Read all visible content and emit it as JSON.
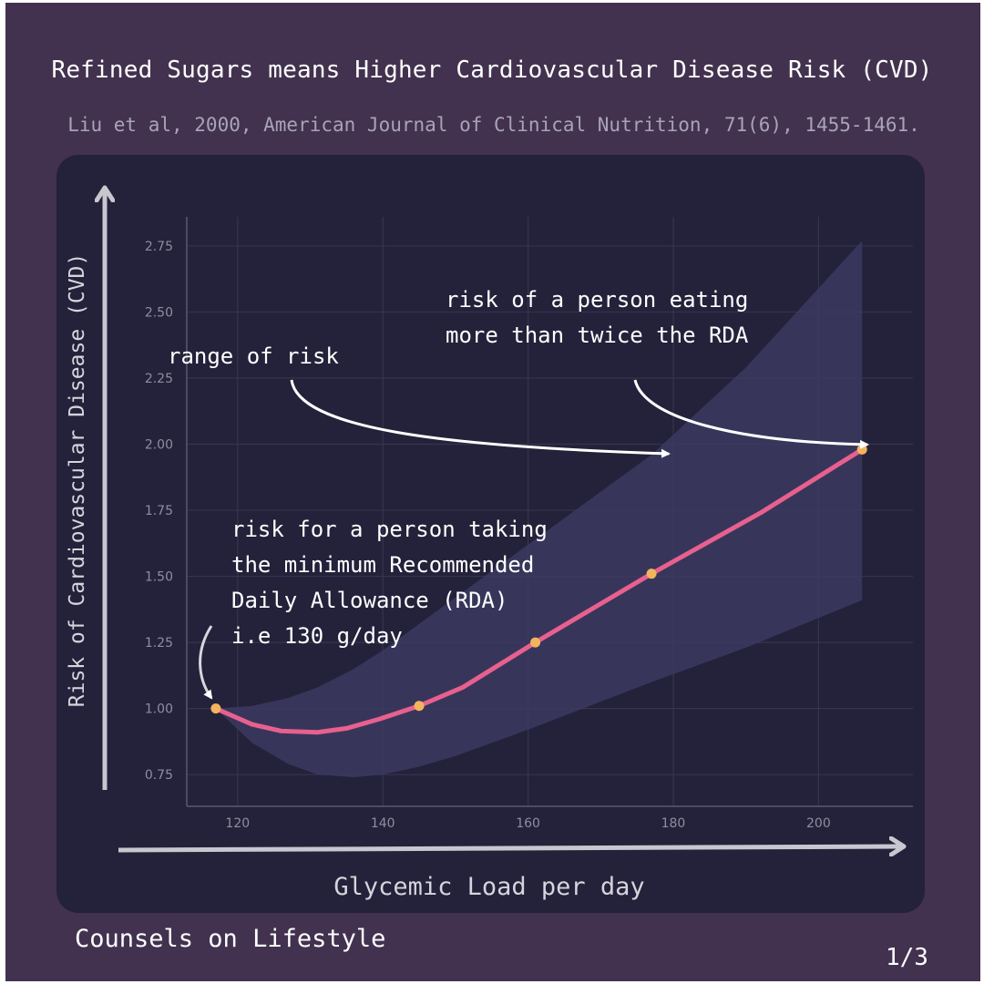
{
  "header": {
    "title": "Refined Sugars means Higher Cardiovascular Disease Risk (CVD)",
    "subtitle": "Liu et al, 2000, American Journal of Clinical Nutrition, 71(6), 1455-1461."
  },
  "footer": {
    "brand": "Counsels on Lifestyle",
    "page_indicator": "1/3"
  },
  "colors": {
    "background": "#42324f",
    "panel": "#24213a",
    "line": "#e8608e",
    "marker": "#f3b45e",
    "band": "#3b3960",
    "text": "#ffffff",
    "tick": "#8f8ca3",
    "grid": "#36344e",
    "axis_arrow": "#c8c6cf"
  },
  "chart_data": {
    "type": "line",
    "xlabel": "Glycemic Load per day",
    "ylabel": "Risk of Cardiovascular Disease (CVD)",
    "xlim": [
      113,
      213
    ],
    "ylim": [
      0.63,
      2.86
    ],
    "x_ticks": [
      120,
      140,
      160,
      180,
      200
    ],
    "x_tick_labels": [
      "120",
      "140",
      "160",
      "180",
      "200"
    ],
    "y_ticks": [
      0.75,
      1.0,
      1.25,
      1.5,
      1.75,
      2.0,
      2.25,
      2.5,
      2.75
    ],
    "y_tick_labels": [
      "0.75",
      "1.00",
      "1.25",
      "1.50",
      "1.75",
      "2.00",
      "2.25",
      "2.50",
      "2.75"
    ],
    "grid": true,
    "series": [
      {
        "x": [
          117,
          119.5,
          122,
          126,
          131,
          135,
          139.5,
          145,
          151,
          161,
          169,
          177,
          192,
          206
        ],
        "y": [
          1.0,
          0.97,
          0.94,
          0.915,
          0.91,
          0.925,
          0.96,
          1.01,
          1.08,
          1.25,
          1.38,
          1.51,
          1.74,
          1.98
        ]
      }
    ],
    "markers": {
      "x": [
        117,
        145,
        161,
        177,
        206
      ],
      "y": [
        1.0,
        1.01,
        1.25,
        1.51,
        1.98
      ]
    },
    "band": {
      "x": [
        117,
        122,
        127,
        131,
        136,
        140,
        145,
        150,
        160,
        177,
        190,
        206
      ],
      "lower": [
        1.0,
        0.87,
        0.79,
        0.75,
        0.74,
        0.75,
        0.78,
        0.82,
        0.92,
        1.1,
        1.23,
        1.41
      ],
      "upper": [
        1.0,
        1.01,
        1.04,
        1.08,
        1.15,
        1.22,
        1.32,
        1.42,
        1.62,
        1.96,
        2.29,
        2.77
      ]
    },
    "annotations": [
      {
        "id": "rda",
        "lines": [
          "risk for a person taking",
          "the minimum Recommended",
          "Daily Allowance (RDA)",
          "i.e 130 g/day"
        ]
      },
      {
        "id": "range",
        "lines": [
          "range of risk"
        ]
      },
      {
        "id": "twice",
        "lines": [
          "risk of a person eating",
          "more than twice the RDA"
        ]
      }
    ]
  }
}
